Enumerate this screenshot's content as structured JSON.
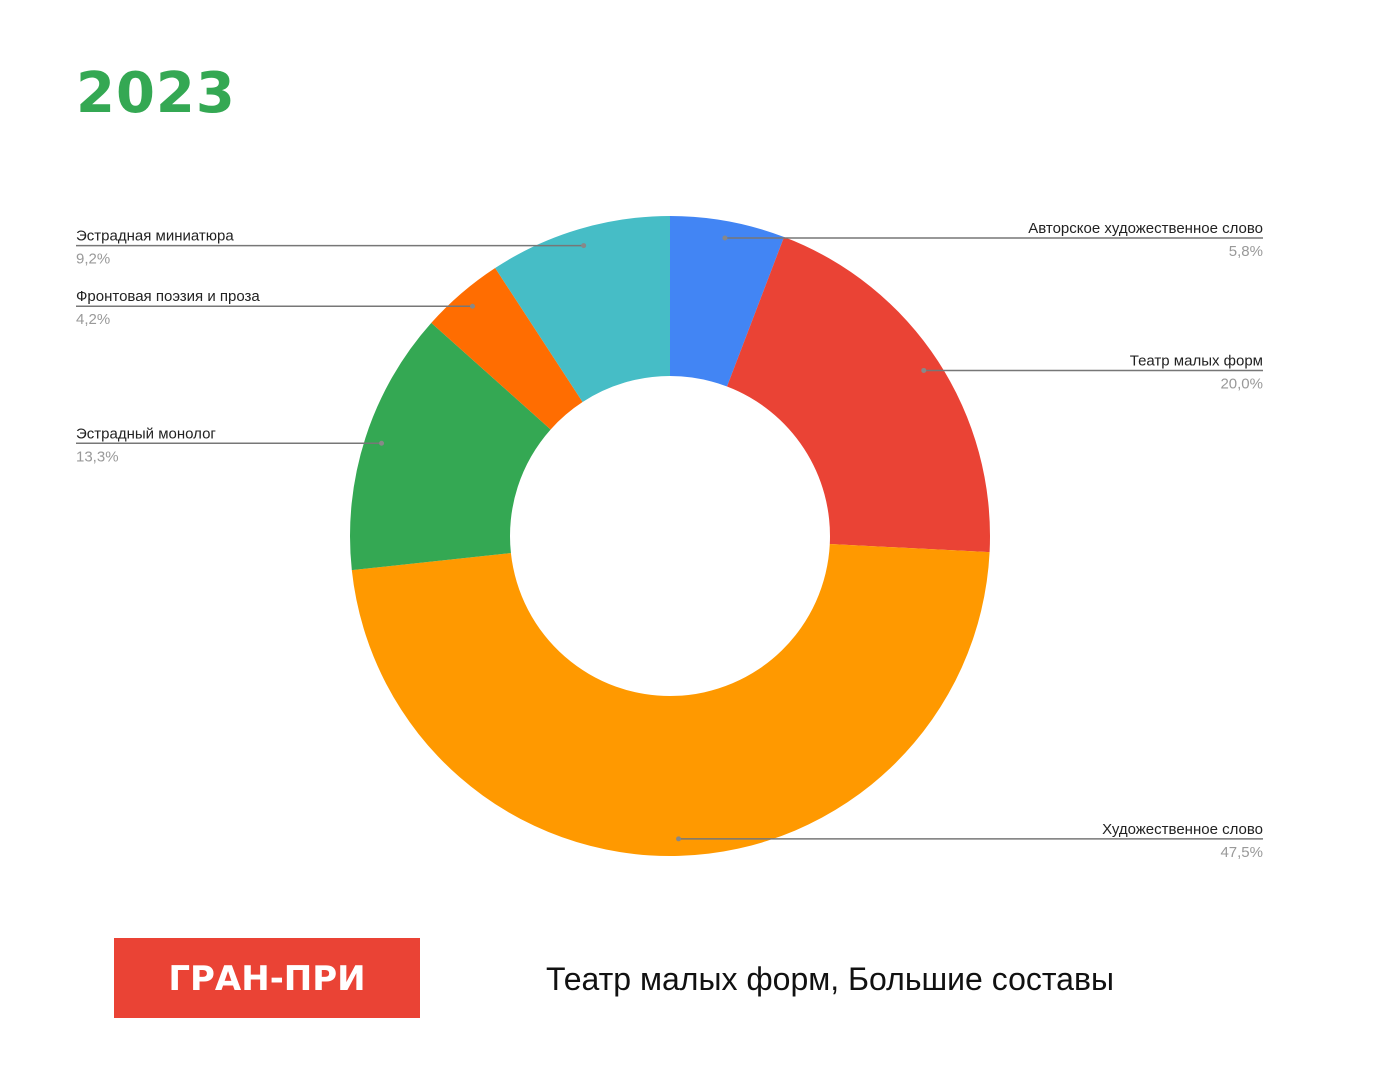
{
  "chart_data": {
    "type": "donut",
    "title": "2023",
    "categories": [
      "Авторское художественное слово",
      "Театр малых форм",
      "Художественное слово",
      "Эстрадный монолог",
      "Фронтовая поэзия и проза",
      "Эстрадная миниатюра"
    ],
    "values": [
      5.8,
      20.0,
      47.5,
      13.3,
      4.2,
      9.2
    ],
    "value_labels": [
      "5,8%",
      "20,0%",
      "47,5%",
      "13,3%",
      "4,2%",
      "9,2%"
    ],
    "colors": [
      "#4285f4",
      "#ea4335",
      "#ff9900",
      "#34a853",
      "#ff6d01",
      "#46bdc6"
    ]
  },
  "footer": {
    "badge": "ГРАН-ПРИ",
    "caption": "Театр малых форм, Большие составы"
  }
}
